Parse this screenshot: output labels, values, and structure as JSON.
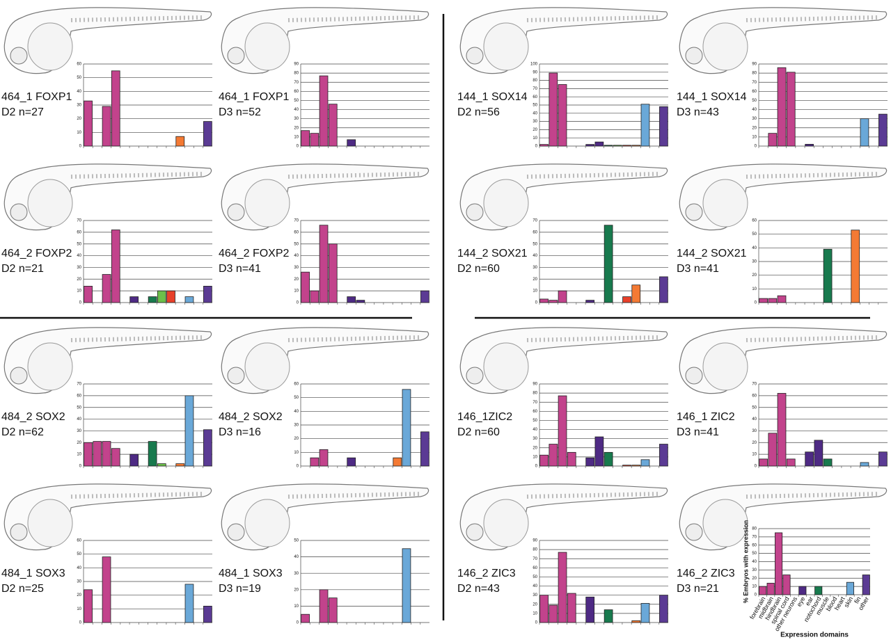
{
  "domain_colors": [
    "#c2438c",
    "#c2438c",
    "#c2438c",
    "#c2438c",
    "#c2438c",
    "#4e2a84",
    "#4e2a84",
    "#187a4e",
    "#6cc04a",
    "#e8402a",
    "#f47a34",
    "#6aa8d8",
    "#6aa8d8",
    "#5b3b94"
  ],
  "chart_data": [
    {
      "type": "bar",
      "title": "464_1 FOXP1",
      "subtitle": "D2 n=27",
      "values": [
        33,
        0,
        29,
        55,
        0,
        0,
        0,
        0,
        0,
        0,
        7,
        0,
        0,
        18
      ],
      "ylim": [
        0,
        60
      ],
      "yticks": [
        0,
        10,
        20,
        30,
        40,
        50,
        60
      ],
      "grid": true
    },
    {
      "type": "bar",
      "title": "464_1 FOXP1",
      "subtitle": "D3 n=52",
      "values": [
        17,
        14,
        77,
        46,
        0,
        7,
        0,
        0,
        0,
        0,
        0,
        0,
        0,
        0
      ],
      "ylim": [
        0,
        90
      ],
      "yticks": [
        0,
        10,
        20,
        30,
        40,
        50,
        60,
        70,
        80,
        90
      ],
      "grid": true
    },
    {
      "type": "bar",
      "title": "144_1 SOX14",
      "subtitle": "D2 n=56",
      "values": [
        2,
        89,
        75,
        0,
        0,
        2,
        5,
        1,
        1,
        1,
        1,
        51,
        0,
        48
      ],
      "ylim": [
        0,
        100
      ],
      "yticks": [
        0,
        10,
        20,
        30,
        40,
        50,
        60,
        70,
        80,
        90,
        100
      ],
      "grid": true
    },
    {
      "type": "bar",
      "title": "144_1 SOX14",
      "subtitle": "D3 n=43",
      "values": [
        0,
        14,
        86,
        81,
        0,
        2,
        0,
        0,
        0,
        0,
        0,
        30,
        0,
        35
      ],
      "ylim": [
        0,
        90
      ],
      "yticks": [
        0,
        10,
        20,
        30,
        40,
        50,
        60,
        70,
        80,
        90
      ],
      "grid": true
    },
    {
      "type": "bar",
      "title": "464_2 FOXP2",
      "subtitle": "D2 n=21",
      "values": [
        14,
        0,
        24,
        62,
        0,
        5,
        0,
        5,
        10,
        10,
        0,
        5,
        0,
        14
      ],
      "ylim": [
        0,
        70
      ],
      "yticks": [
        0,
        10,
        20,
        30,
        40,
        50,
        60,
        70
      ],
      "grid": true
    },
    {
      "type": "bar",
      "title": "464_2 FOXP2",
      "subtitle": "D3 n=41",
      "values": [
        26,
        10,
        66,
        50,
        0,
        5,
        2,
        0,
        0,
        0,
        0,
        0,
        0,
        10
      ],
      "ylim": [
        0,
        70
      ],
      "yticks": [
        0,
        10,
        20,
        30,
        40,
        50,
        60,
        70
      ],
      "grid": true
    },
    {
      "type": "bar",
      "title": "144_2 SOX21",
      "subtitle": "D2 n=60",
      "values": [
        3,
        2,
        10,
        0,
        0,
        2,
        0,
        66,
        0,
        5,
        15,
        0,
        0,
        22
      ],
      "ylim": [
        0,
        70
      ],
      "yticks": [
        0,
        10,
        20,
        30,
        40,
        50,
        60,
        70
      ],
      "grid": true
    },
    {
      "type": "bar",
      "title": "144_2 SOX21",
      "subtitle": "D3 n=41",
      "values": [
        3,
        3,
        5,
        0,
        0,
        0,
        0,
        39,
        0,
        0,
        53,
        0,
        0,
        0
      ],
      "ylim": [
        0,
        60
      ],
      "yticks": [
        0,
        10,
        20,
        30,
        40,
        50,
        60
      ],
      "grid": true
    },
    {
      "type": "bar",
      "title": "484_2 SOX2",
      "subtitle": "D2 n=62",
      "values": [
        20,
        21,
        21,
        15,
        0,
        10,
        0,
        21,
        2,
        0,
        2,
        60,
        0,
        31
      ],
      "ylim": [
        0,
        70
      ],
      "yticks": [
        0,
        10,
        20,
        30,
        40,
        50,
        60,
        70
      ],
      "grid": true
    },
    {
      "type": "bar",
      "title": "484_2 SOX2",
      "subtitle": "D3 n=16",
      "values": [
        0,
        6,
        12,
        0,
        0,
        6,
        0,
        0,
        0,
        0,
        6,
        56,
        0,
        25
      ],
      "ylim": [
        0,
        60
      ],
      "yticks": [
        0,
        10,
        20,
        30,
        40,
        50,
        60
      ],
      "grid": true
    },
    {
      "type": "bar",
      "title": "146_1ZIC2",
      "subtitle": "D2 n=60",
      "values": [
        12,
        24,
        77,
        15,
        0,
        9,
        32,
        15,
        0,
        1,
        1,
        7,
        0,
        24
      ],
      "ylim": [
        0,
        90
      ],
      "yticks": [
        0,
        10,
        20,
        30,
        40,
        50,
        60,
        70,
        80,
        90
      ],
      "grid": true
    },
    {
      "type": "bar",
      "title": "146_1 ZIC2",
      "subtitle": "D3 n=41",
      "values": [
        6,
        28,
        62,
        6,
        0,
        12,
        22,
        6,
        0,
        0,
        0,
        3,
        0,
        12
      ],
      "ylim": [
        0,
        70
      ],
      "yticks": [
        0,
        10,
        20,
        30,
        40,
        50,
        60,
        70
      ],
      "grid": true
    },
    {
      "type": "bar",
      "title": "484_1 SOX3",
      "subtitle": "D2 n=25",
      "values": [
        24,
        0,
        48,
        0,
        0,
        0,
        0,
        0,
        0,
        0,
        0,
        28,
        0,
        12
      ],
      "ylim": [
        0,
        60
      ],
      "yticks": [
        0,
        10,
        20,
        30,
        40,
        50,
        60
      ],
      "grid": true
    },
    {
      "type": "bar",
      "title": "484_1 SOX3",
      "subtitle": "D3 n=19",
      "values": [
        5,
        0,
        20,
        15,
        0,
        0,
        0,
        0,
        0,
        0,
        0,
        45,
        0,
        0
      ],
      "ylim": [
        0,
        50
      ],
      "yticks": [
        0,
        10,
        20,
        30,
        40,
        50
      ],
      "grid": true
    },
    {
      "type": "bar",
      "title": "146_2 ZIC3",
      "subtitle": "D2 n=43",
      "values": [
        30,
        19,
        77,
        32,
        0,
        28,
        0,
        14,
        0,
        0,
        2,
        21,
        0,
        30
      ],
      "ylim": [
        0,
        90
      ],
      "yticks": [
        0,
        10,
        20,
        30,
        40,
        50,
        60,
        70,
        80,
        90
      ],
      "grid": true
    },
    {
      "type": "bar",
      "title": "146_2 ZIC3",
      "subtitle": "D3 n=21",
      "values": [
        10,
        14,
        75,
        24,
        0,
        10,
        0,
        10,
        0,
        0,
        0,
        15,
        0,
        24
      ],
      "ylim": [
        0,
        80
      ],
      "yticks": [
        0,
        10,
        20,
        30,
        40,
        50,
        60,
        70,
        80
      ],
      "grid": true,
      "categories": [
        "forebrain",
        "midbrain",
        "hindbrain",
        "spinal cord",
        "other neurons",
        "eye",
        "ear",
        "notochord",
        "muscle",
        "blood",
        "heart",
        "skin",
        "fin",
        "other"
      ],
      "ylabel": "% Embryos with expression",
      "xlabel": "Expression domains"
    }
  ]
}
